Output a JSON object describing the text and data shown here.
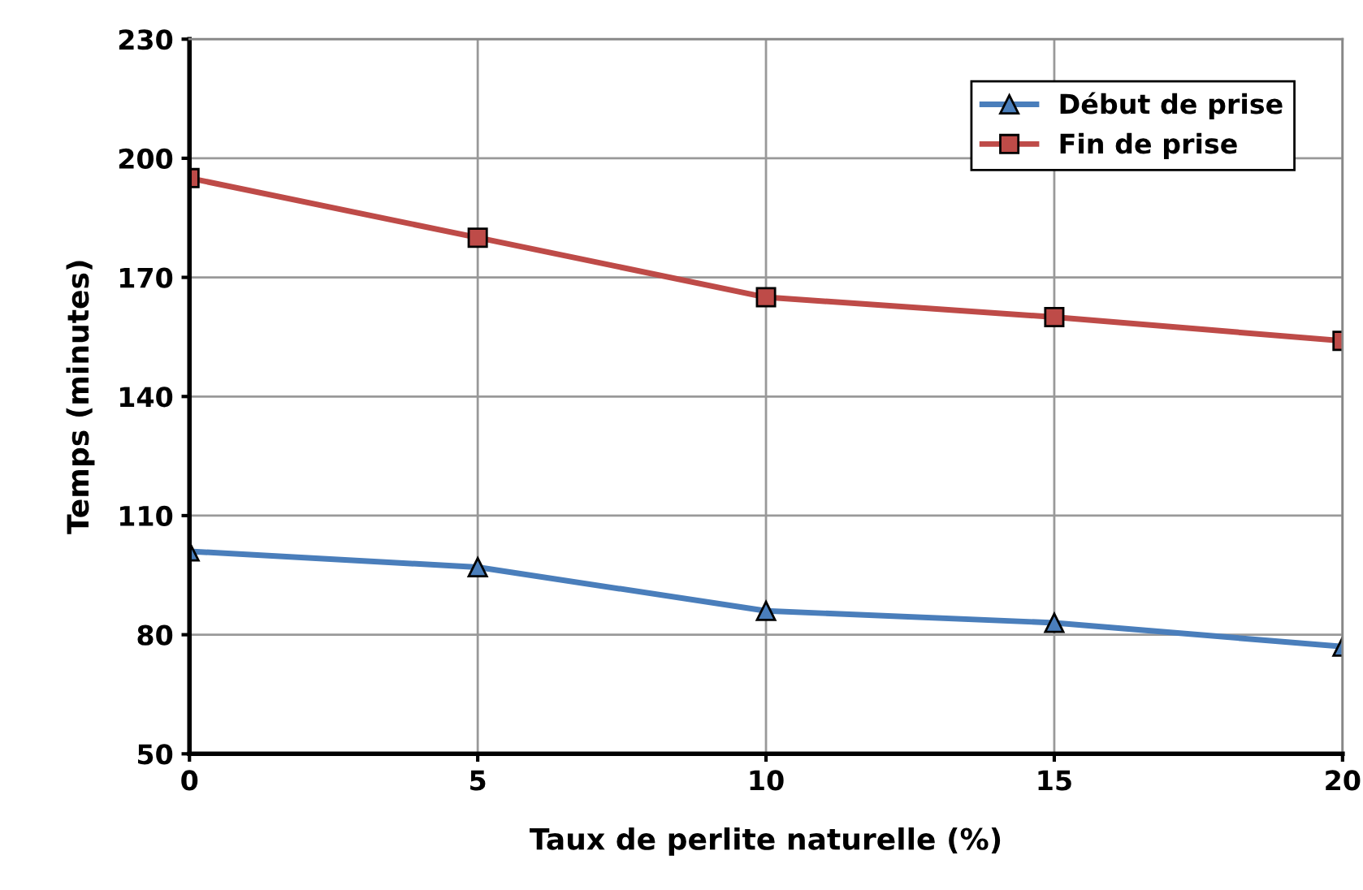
{
  "chart_data": {
    "type": "line",
    "xlabel": "Taux de perlite naturelle (%)",
    "ylabel": "Temps (minutes)",
    "x": [
      0,
      5,
      10,
      15,
      20
    ],
    "series": [
      {
        "name": "Début de prise",
        "color": "#4a7ebb",
        "marker": "triangle",
        "values": [
          101,
          97,
          86,
          83,
          77
        ]
      },
      {
        "name": "Fin de prise",
        "color": "#be4b48",
        "marker": "square",
        "values": [
          195,
          180,
          165,
          160,
          154
        ]
      }
    ],
    "xlim": [
      0,
      20
    ],
    "xticks": [
      0,
      5,
      10,
      15,
      20
    ],
    "ylim": [
      50,
      230
    ],
    "yticks": [
      50,
      80,
      110,
      140,
      170,
      200,
      230
    ],
    "grid": true,
    "legend": "top right",
    "line_style": "solid"
  }
}
